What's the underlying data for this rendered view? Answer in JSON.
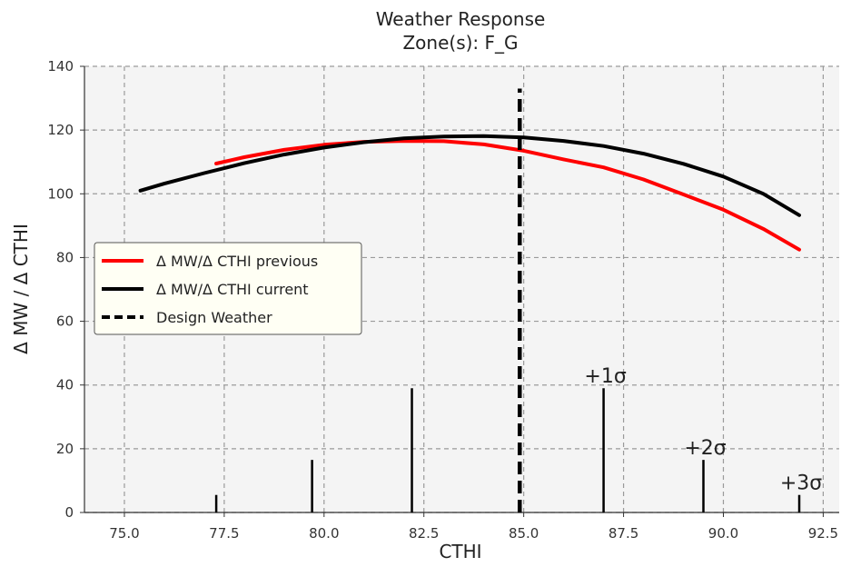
{
  "chart_data": {
    "type": "line",
    "title": "Weather Response",
    "subtitle": "Zone(s): F_G",
    "xlabel": "CTHI",
    "ylabel": "Δ MW / Δ CTHI",
    "xlim": [
      74.0,
      92.9
    ],
    "ylim": [
      0,
      140
    ],
    "xticks": [
      75.0,
      77.5,
      80.0,
      82.5,
      85.0,
      87.5,
      90.0,
      92.5
    ],
    "xtick_labels": [
      "75.0",
      "77.5",
      "80.0",
      "82.5",
      "85.0",
      "87.5",
      "90.0",
      "92.5"
    ],
    "yticks": [
      0,
      20,
      40,
      60,
      80,
      100,
      120,
      140
    ],
    "ytick_labels": [
      "0",
      "20",
      "40",
      "60",
      "80",
      "100",
      "120",
      "140"
    ],
    "grid": true,
    "legend_position": "center-left",
    "series": [
      {
        "name": "Δ MW/Δ CTHI previous",
        "color": "#ff0000",
        "style": "solid",
        "x": [
          77.3,
          78.0,
          79.0,
          80.0,
          81.0,
          82.0,
          83.0,
          84.0,
          85.0,
          86.0,
          87.0,
          88.0,
          89.0,
          90.0,
          91.0,
          91.9
        ],
        "y": [
          109.5,
          111.5,
          113.8,
          115.4,
          116.3,
          116.6,
          116.5,
          115.5,
          113.5,
          110.8,
          108.3,
          104.5,
          99.8,
          95.0,
          89.0,
          82.5
        ]
      },
      {
        "name": "Δ MW/Δ CTHI current",
        "color": "#000000",
        "style": "solid",
        "x": [
          75.4,
          76.0,
          77.0,
          78.0,
          79.0,
          80.0,
          81.0,
          82.0,
          83.0,
          84.0,
          85.0,
          86.0,
          87.0,
          88.0,
          89.0,
          90.0,
          91.0,
          91.9
        ],
        "y": [
          101.0,
          103.2,
          106.5,
          109.6,
          112.3,
          114.5,
          116.2,
          117.4,
          118.0,
          118.1,
          117.7,
          116.6,
          115.0,
          112.6,
          109.4,
          105.4,
          100.0,
          93.3
        ]
      }
    ],
    "design_weather": {
      "name": "Design Weather",
      "x": 84.9,
      "y_top": 133,
      "color": "#000000",
      "style": "dashed"
    },
    "distribution_bars": [
      {
        "x": 77.3,
        "value": 5.5,
        "label": ""
      },
      {
        "x": 79.7,
        "value": 16.5,
        "label": ""
      },
      {
        "x": 82.2,
        "value": 39.0,
        "label": ""
      },
      {
        "x": 87.0,
        "value": 39.0,
        "label": "+1σ"
      },
      {
        "x": 89.5,
        "value": 16.5,
        "label": "+2σ"
      },
      {
        "x": 91.9,
        "value": 5.5,
        "label": "+3σ"
      }
    ]
  }
}
